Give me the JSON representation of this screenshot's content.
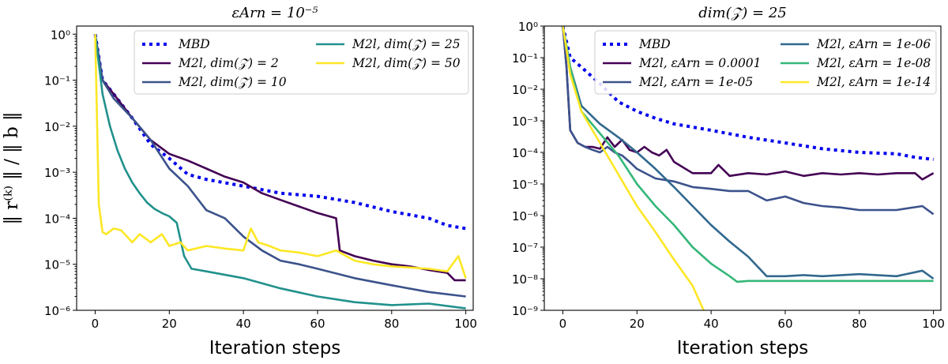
{
  "chart_data": [
    {
      "type": "line",
      "title": "εArn = 10⁻⁵",
      "xlabel": "Iteration steps",
      "ylabel": "‖ r⁽ᵏ⁾ ‖ / ‖ b ‖",
      "yscale": "log",
      "xlim": [
        -5,
        102
      ],
      "ylim": [
        1e-06,
        1.5
      ],
      "xticks": [
        0,
        20,
        40,
        60,
        80,
        100
      ],
      "yticks": [
        {
          "value": 1,
          "label": "10⁰"
        },
        {
          "value": 0.1,
          "label": "10⁻¹"
        },
        {
          "value": 0.01,
          "label": "10⁻²"
        },
        {
          "value": 0.001,
          "label": "10⁻³"
        },
        {
          "value": 0.0001,
          "label": "10⁻⁴"
        },
        {
          "value": 1e-05,
          "label": "10⁻⁵"
        },
        {
          "value": 1e-06,
          "label": "10⁻⁶"
        }
      ],
      "legend_location": "top-right",
      "legend_columns": 2,
      "series": [
        {
          "name": "M_BD",
          "label": "MBD",
          "color": "#0000ee",
          "style": "dotted",
          "x": [
            0,
            2,
            5,
            10,
            15,
            20,
            25,
            30,
            40,
            50,
            60,
            70,
            80,
            90,
            95,
            100
          ],
          "y": [
            1,
            0.1,
            0.05,
            0.015,
            0.004,
            0.002,
            0.0009,
            0.0007,
            0.0005,
            0.00035,
            0.0003,
            0.00022,
            0.00014,
            0.0001,
            7e-05,
            6e-05
          ]
        },
        {
          "name": "M_2l, dim(Z) = 2",
          "label": "M2l, dim(𝒵) = 2",
          "color": "#440154",
          "style": "solid",
          "x": [
            0,
            2,
            5,
            10,
            15,
            20,
            25,
            30,
            35,
            40,
            45,
            50,
            55,
            60,
            65,
            66,
            70,
            75,
            80,
            85,
            90,
            95,
            97,
            100
          ],
          "y": [
            1,
            0.1,
            0.05,
            0.015,
            0.005,
            0.0025,
            0.0018,
            0.0012,
            0.0008,
            0.0006,
            0.00035,
            0.00025,
            0.00018,
            0.00013,
            0.0001,
            2e-05,
            1.5e-05,
            1.2e-05,
            1e-05,
            9e-06,
            7.5e-06,
            6.5e-06,
            4.5e-06,
            4.5e-06
          ]
        },
        {
          "name": "M_2l, dim(Z) = 10",
          "label": "M2l, dim(𝒵) = 10",
          "color": "#3b528b",
          "style": "solid",
          "x": [
            0,
            2,
            5,
            10,
            15,
            20,
            25,
            30,
            35,
            40,
            45,
            50,
            55,
            60,
            70,
            80,
            90,
            100
          ],
          "y": [
            1,
            0.1,
            0.04,
            0.015,
            0.005,
            0.0012,
            0.0005,
            0.00015,
            0.0001,
            4e-05,
            2e-05,
            1.2e-05,
            1e-05,
            8e-06,
            5e-06,
            3.5e-06,
            2.5e-06,
            2e-06
          ]
        },
        {
          "name": "M_2l, dim(Z) = 25",
          "label": "M2l, dim(𝒵) = 25",
          "color": "#21918c",
          "style": "solid",
          "x": [
            0,
            2,
            4,
            6,
            8,
            10,
            12,
            14,
            16,
            18,
            20,
            22,
            24,
            26,
            30,
            40,
            50,
            60,
            70,
            80,
            90,
            100
          ],
          "y": [
            1,
            0.05,
            0.01,
            0.003,
            0.0012,
            0.0006,
            0.00035,
            0.00022,
            0.00016,
            0.00013,
            0.00011,
            8e-05,
            1.5e-05,
            8e-06,
            7e-06,
            5e-06,
            3e-06,
            2e-06,
            1.5e-06,
            1.3e-06,
            1.4e-06,
            1.1e-06
          ]
        },
        {
          "name": "M_2l, dim(Z) = 50",
          "label": "M2l, dim(𝒵) = 50",
          "color": "#fde725",
          "style": "solid",
          "x": [
            0,
            1,
            2,
            3,
            5,
            7,
            10,
            12,
            15,
            18,
            20,
            23,
            25,
            30,
            35,
            40,
            42,
            44,
            47,
            50,
            55,
            60,
            65,
            70,
            75,
            80,
            85,
            90,
            95,
            98,
            100
          ],
          "y": [
            1,
            0.0002,
            5e-05,
            4.5e-05,
            6e-05,
            5.5e-05,
            3e-05,
            4.5e-05,
            3e-05,
            4.5e-05,
            2.5e-05,
            3e-05,
            2e-05,
            2.5e-05,
            2.2e-05,
            2e-05,
            6e-05,
            3e-05,
            2.5e-05,
            2e-05,
            1.8e-05,
            1.5e-05,
            2e-05,
            1.2e-05,
            1e-05,
            9e-06,
            8.5e-06,
            8e-06,
            7e-06,
            1.5e-05,
            5e-06
          ]
        }
      ]
    },
    {
      "type": "line",
      "title": "dim(𝒵) = 25",
      "xlabel": "Iteration steps",
      "ylabel": "",
      "yscale": "log",
      "xlim": [
        -5,
        102
      ],
      "ylim": [
        1e-09,
        1
      ],
      "xticks": [
        0,
        20,
        40,
        60,
        80,
        100
      ],
      "yticks": [
        {
          "value": 1,
          "label": "10⁰"
        },
        {
          "value": 0.1,
          "label": "10⁻¹"
        },
        {
          "value": 0.01,
          "label": "10⁻²"
        },
        {
          "value": 0.001,
          "label": "10⁻³"
        },
        {
          "value": 0.0001,
          "label": "10⁻⁴"
        },
        {
          "value": 1e-05,
          "label": "10⁻⁵"
        },
        {
          "value": 1e-06,
          "label": "10⁻⁶"
        },
        {
          "value": 1e-07,
          "label": "10⁻⁷"
        },
        {
          "value": 1e-08,
          "label": "10⁻⁸"
        },
        {
          "value": 1e-09,
          "label": "10⁻⁹"
        }
      ],
      "legend_location": "top-right",
      "legend_columns": 2,
      "series": [
        {
          "name": "M_BD",
          "label": "MBD",
          "color": "#0000ee",
          "style": "dotted",
          "x": [
            0,
            2,
            5,
            10,
            15,
            20,
            25,
            30,
            40,
            50,
            60,
            70,
            80,
            90,
            95,
            100
          ],
          "y": [
            1,
            0.1,
            0.05,
            0.015,
            0.004,
            0.002,
            0.0012,
            0.0008,
            0.0005,
            0.0003,
            0.0002,
            0.00013,
            0.0001,
            9e-05,
            7e-05,
            6e-05
          ]
        },
        {
          "name": "M_2l, εArn = 0.0001",
          "label": "M2l, εArn = 0.0001",
          "color": "#440154",
          "style": "solid",
          "x": [
            0,
            1,
            2,
            4,
            6,
            8,
            10,
            12,
            14,
            16,
            18,
            20,
            22,
            24,
            26,
            28,
            30,
            35,
            40,
            42,
            45,
            50,
            55,
            60,
            65,
            70,
            75,
            80,
            85,
            90,
            95,
            97,
            100
          ],
          "y": [
            1,
            0.05,
            0.0005,
            0.0002,
            0.00015,
            0.00015,
            0.00013,
            0.0003,
            0.00015,
            0.00025,
            0.00012,
            0.0001,
            0.00015,
            0.0001,
            8e-05,
            0.00012,
            5e-05,
            2.2e-05,
            2.2e-05,
            4e-05,
            1.8e-05,
            2.2e-05,
            2e-05,
            2.5e-05,
            1.8e-05,
            2.2e-05,
            2e-05,
            2.2e-05,
            2e-05,
            2.2e-05,
            2.2e-05,
            1.4e-05,
            2.2e-05
          ]
        },
        {
          "name": "M_2l, εArn = 1e-05",
          "label": "M2l, εArn = 1e-05",
          "color": "#3b528b",
          "style": "solid",
          "x": [
            0,
            1,
            2,
            4,
            6,
            8,
            10,
            12,
            14,
            16,
            18,
            20,
            25,
            30,
            35,
            40,
            45,
            50,
            55,
            60,
            65,
            70,
            75,
            80,
            90,
            97,
            100
          ],
          "y": [
            1,
            0.05,
            0.0005,
            0.0002,
            0.00015,
            0.00012,
            0.0001,
            0.00015,
            0.0001,
            8e-05,
            5e-05,
            3e-05,
            1.5e-05,
            1.2e-05,
            8e-06,
            7e-06,
            6e-06,
            6e-06,
            3e-06,
            4e-06,
            2.5e-06,
            2e-06,
            1.8e-06,
            1.5e-06,
            1.5e-06,
            2e-06,
            1.1e-06
          ]
        },
        {
          "name": "M_2l, εArn = 1e-06",
          "label": "M2l, εArn = 1e-06",
          "color": "#31688e",
          "style": "solid",
          "x": [
            0,
            2,
            5,
            10,
            15,
            20,
            25,
            30,
            35,
            40,
            45,
            50,
            55,
            60,
            65,
            70,
            80,
            90,
            97,
            100
          ],
          "y": [
            1,
            0.05,
            0.003,
            0.0008,
            0.0003,
            0.0001,
            3e-05,
            8e-06,
            2e-06,
            5e-07,
            1.5e-07,
            5e-08,
            1.2e-08,
            1.2e-08,
            1.3e-08,
            1.2e-08,
            1.4e-08,
            1.2e-08,
            1.8e-08,
            1e-08
          ]
        },
        {
          "name": "M_2l, εArn = 1e-08",
          "label": "M2l, εArn = 1e-08",
          "color": "#35b779",
          "style": "solid",
          "x": [
            0,
            2,
            5,
            10,
            15,
            20,
            25,
            30,
            35,
            40,
            45,
            47,
            50,
            60,
            70,
            80,
            90,
            100
          ],
          "y": [
            1,
            0.05,
            0.002,
            0.0004,
            8e-05,
            1e-05,
            2e-06,
            5e-07,
            1e-07,
            3e-08,
            1.2e-08,
            8e-09,
            8.5e-09,
            8.5e-09,
            8.5e-09,
            8.5e-09,
            8.5e-09,
            8.5e-09
          ]
        },
        {
          "name": "M_2l, εArn = 1e-14",
          "label": "M2l, εArn = 1e-14",
          "color": "#fde725",
          "style": "solid",
          "x": [
            0,
            2,
            5,
            10,
            15,
            20,
            25,
            30,
            35,
            38
          ],
          "y": [
            1,
            0.03,
            0.002,
            0.0002,
            2e-05,
            2e-06,
            3e-07,
            4e-08,
            6e-09,
            1e-09
          ]
        }
      ]
    }
  ]
}
